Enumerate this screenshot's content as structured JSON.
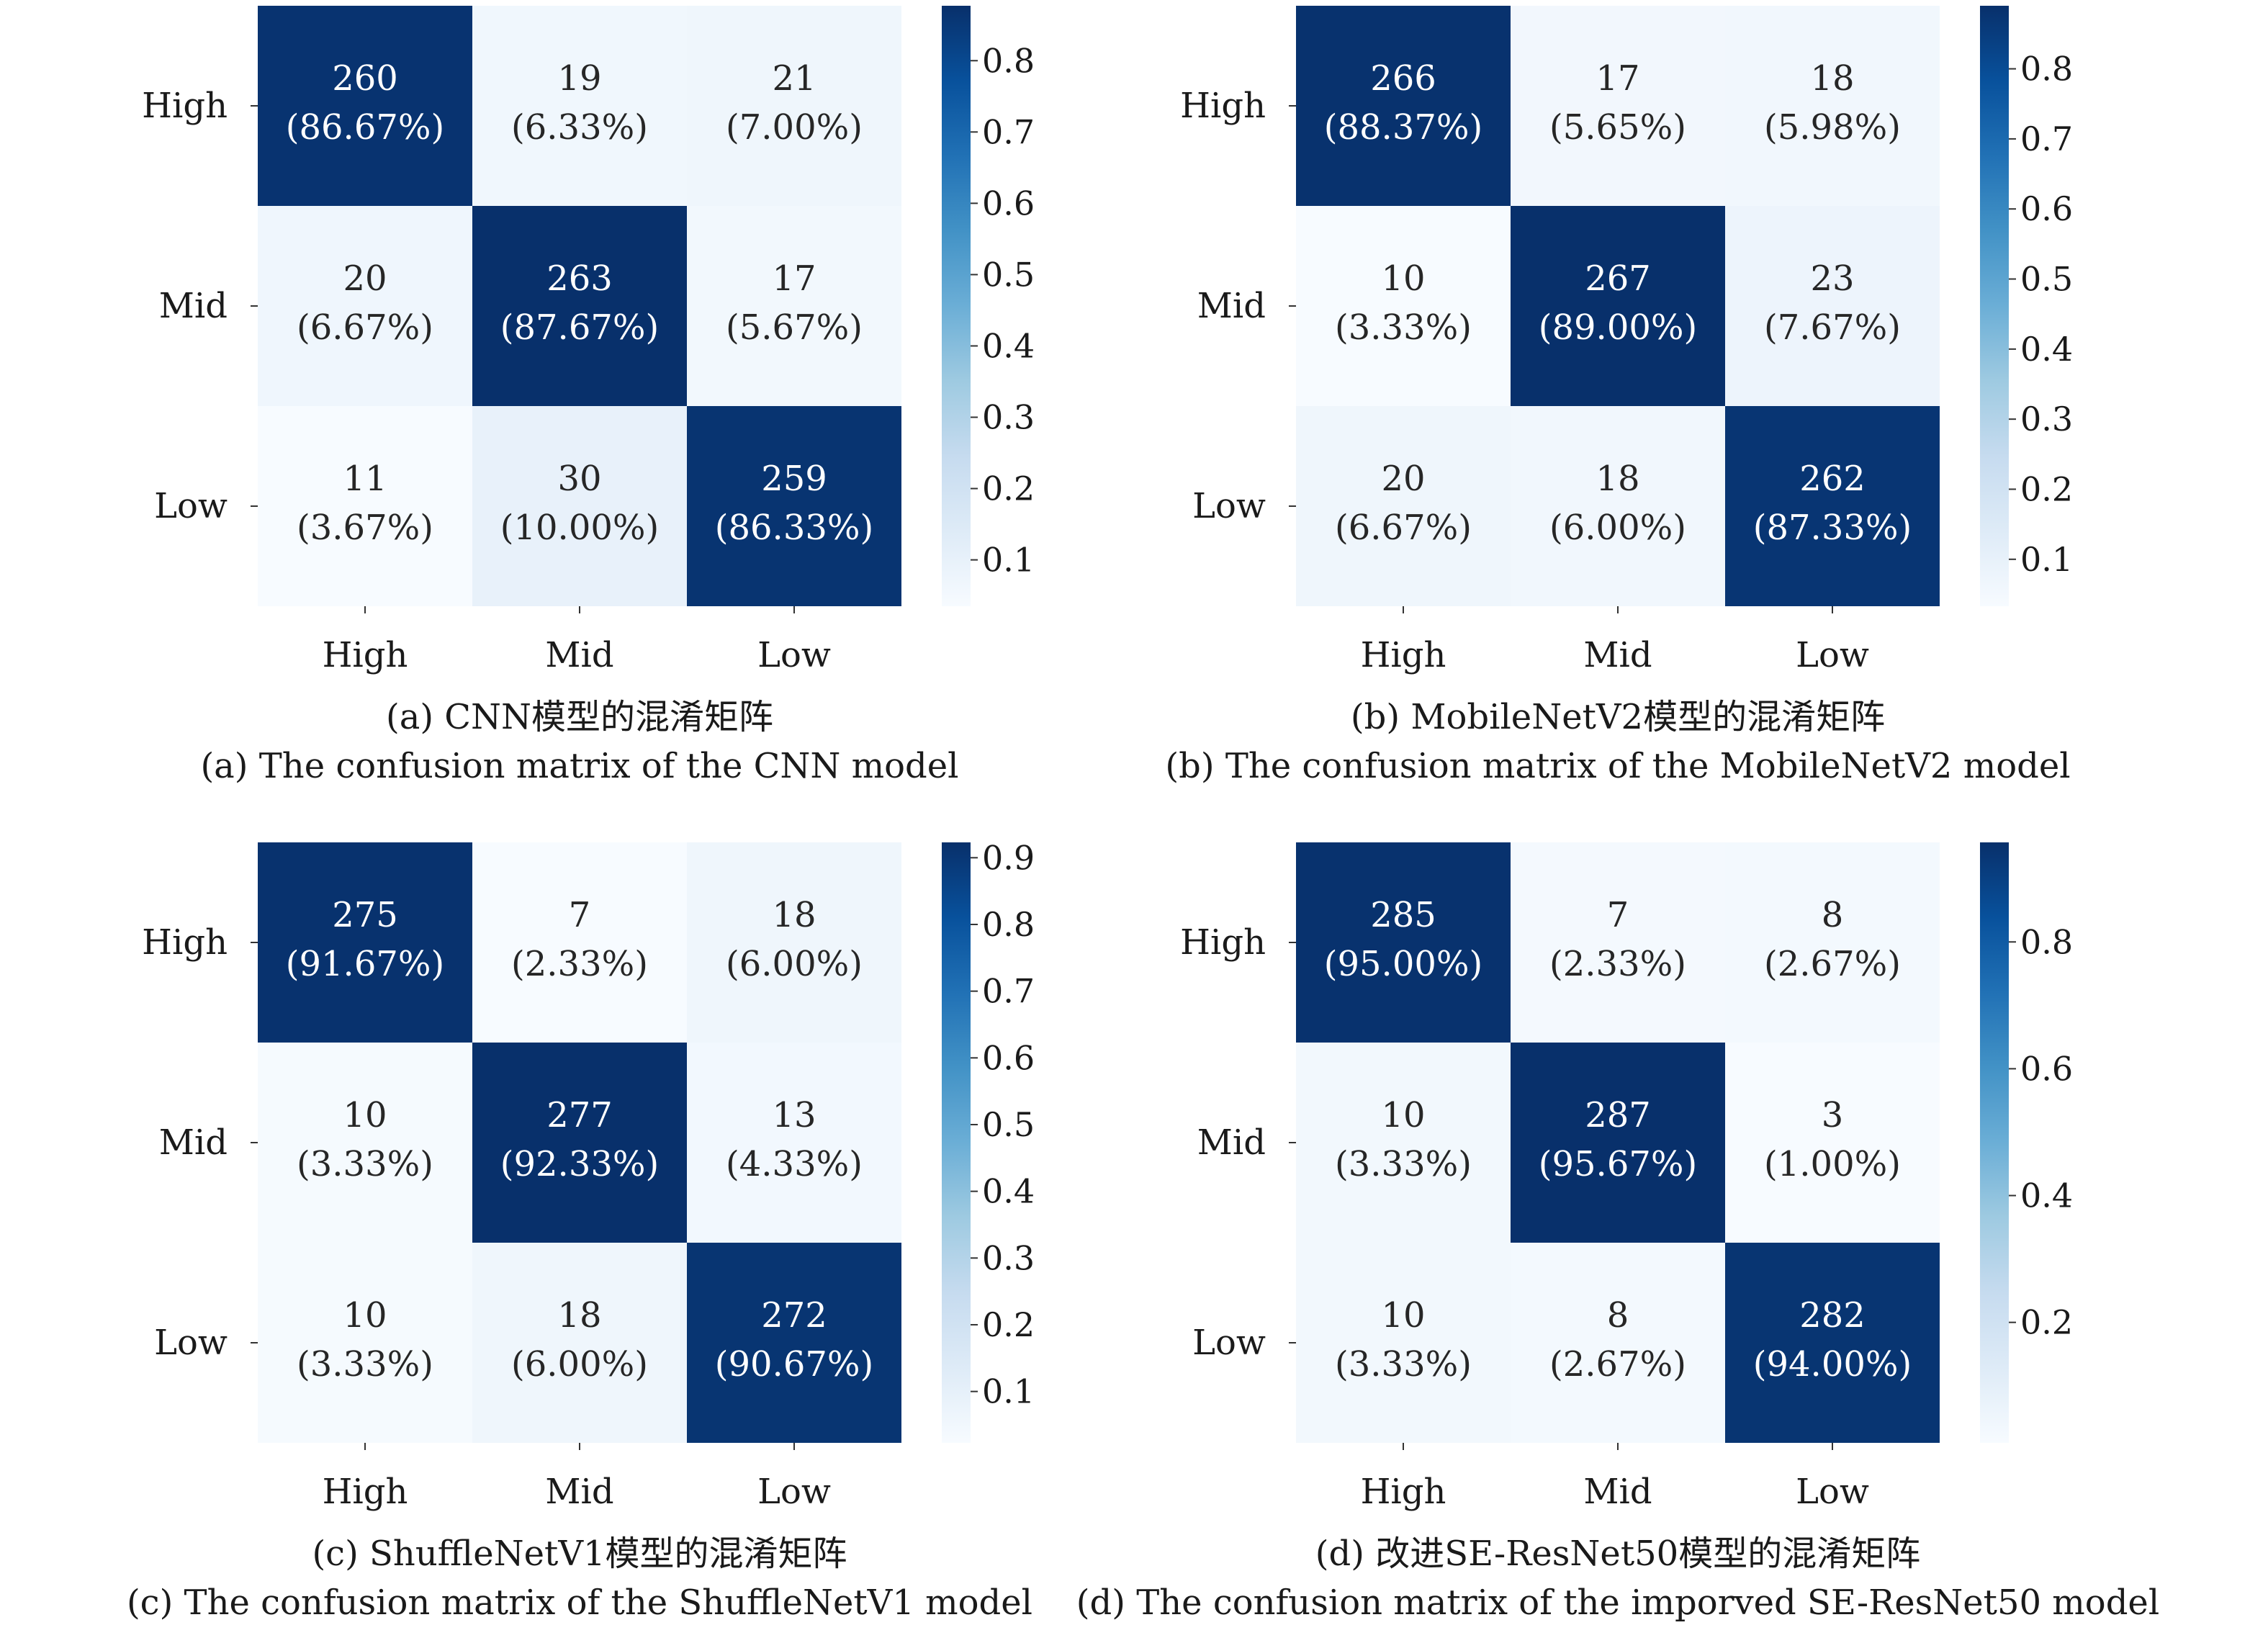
{
  "chart_data": [
    {
      "type": "heatmap",
      "caption_cn": "(a) CNN模型的混淆矩阵",
      "caption_en": "(a) The confusion matrix of the CNN model",
      "row_labels": [
        "High",
        "Mid",
        "Low"
      ],
      "col_labels": [
        "High",
        "Mid",
        "Low"
      ],
      "counts": [
        [
          260,
          19,
          21
        ],
        [
          20,
          263,
          17
        ],
        [
          11,
          30,
          259
        ]
      ],
      "percent_labels": [
        [
          "(86.67%)",
          "(6.33%)",
          "(7.00%)"
        ],
        [
          "(6.67%)",
          "(87.67%)",
          "(5.67%)"
        ],
        [
          "(3.67%)",
          "(10.00%)",
          "(86.33%)"
        ]
      ],
      "colorbar_range": [
        0.035,
        0.877
      ],
      "colorbar_ticks": [
        "0.1",
        "0.2",
        "0.3",
        "0.4",
        "0.5",
        "0.6",
        "0.7",
        "0.8"
      ]
    },
    {
      "type": "heatmap",
      "caption_cn": "(b) MobileNetV2模型的混淆矩阵",
      "caption_en": "(b) The confusion matrix of the MobileNetV2 model",
      "row_labels": [
        "High",
        "Mid",
        "Low"
      ],
      "col_labels": [
        "High",
        "Mid",
        "Low"
      ],
      "counts": [
        [
          266,
          17,
          18
        ],
        [
          10,
          267,
          23
        ],
        [
          20,
          18,
          262
        ]
      ],
      "percent_labels": [
        [
          "(88.37%)",
          "(5.65%)",
          "(5.98%)"
        ],
        [
          "(3.33%)",
          "(89.00%)",
          "(7.67%)"
        ],
        [
          "(6.67%)",
          "(6.00%)",
          "(87.33%)"
        ]
      ],
      "colorbar_range": [
        0.033,
        0.89
      ],
      "colorbar_ticks": [
        "0.1",
        "0.2",
        "0.3",
        "0.4",
        "0.5",
        "0.6",
        "0.7",
        "0.8"
      ]
    },
    {
      "type": "heatmap",
      "caption_cn": "(c) ShuffleNetV1模型的混淆矩阵",
      "caption_en": "(c) The confusion matrix of the ShuffleNetV1 model",
      "row_labels": [
        "High",
        "Mid",
        "Low"
      ],
      "col_labels": [
        "High",
        "Mid",
        "Low"
      ],
      "counts": [
        [
          275,
          7,
          18
        ],
        [
          10,
          277,
          13
        ],
        [
          10,
          18,
          272
        ]
      ],
      "percent_labels": [
        [
          "(91.67%)",
          "(2.33%)",
          "(6.00%)"
        ],
        [
          "(3.33%)",
          "(92.33%)",
          "(4.33%)"
        ],
        [
          "(3.33%)",
          "(6.00%)",
          "(90.67%)"
        ]
      ],
      "colorbar_range": [
        0.023,
        0.923
      ],
      "colorbar_ticks": [
        "0.1",
        "0.2",
        "0.3",
        "0.4",
        "0.5",
        "0.6",
        "0.7",
        "0.8",
        "0.9"
      ]
    },
    {
      "type": "heatmap",
      "caption_cn": "(d) 改进SE-ResNet50模型的混淆矩阵",
      "caption_en": "(d) The confusion matrix of the imporved SE-ResNet50 model",
      "row_labels": [
        "High",
        "Mid",
        "Low"
      ],
      "col_labels": [
        "High",
        "Mid",
        "Low"
      ],
      "counts": [
        [
          285,
          7,
          8
        ],
        [
          10,
          287,
          3
        ],
        [
          10,
          8,
          282
        ]
      ],
      "percent_labels": [
        [
          "(95.00%)",
          "(2.33%)",
          "(2.67%)"
        ],
        [
          "(3.33%)",
          "(95.67%)",
          "(1.00%)"
        ],
        [
          "(3.33%)",
          "(2.67%)",
          "(94.00%)"
        ]
      ],
      "colorbar_range": [
        0.01,
        0.957
      ],
      "colorbar_ticks": [
        "0.2",
        "0.4",
        "0.6",
        "0.8"
      ]
    }
  ]
}
